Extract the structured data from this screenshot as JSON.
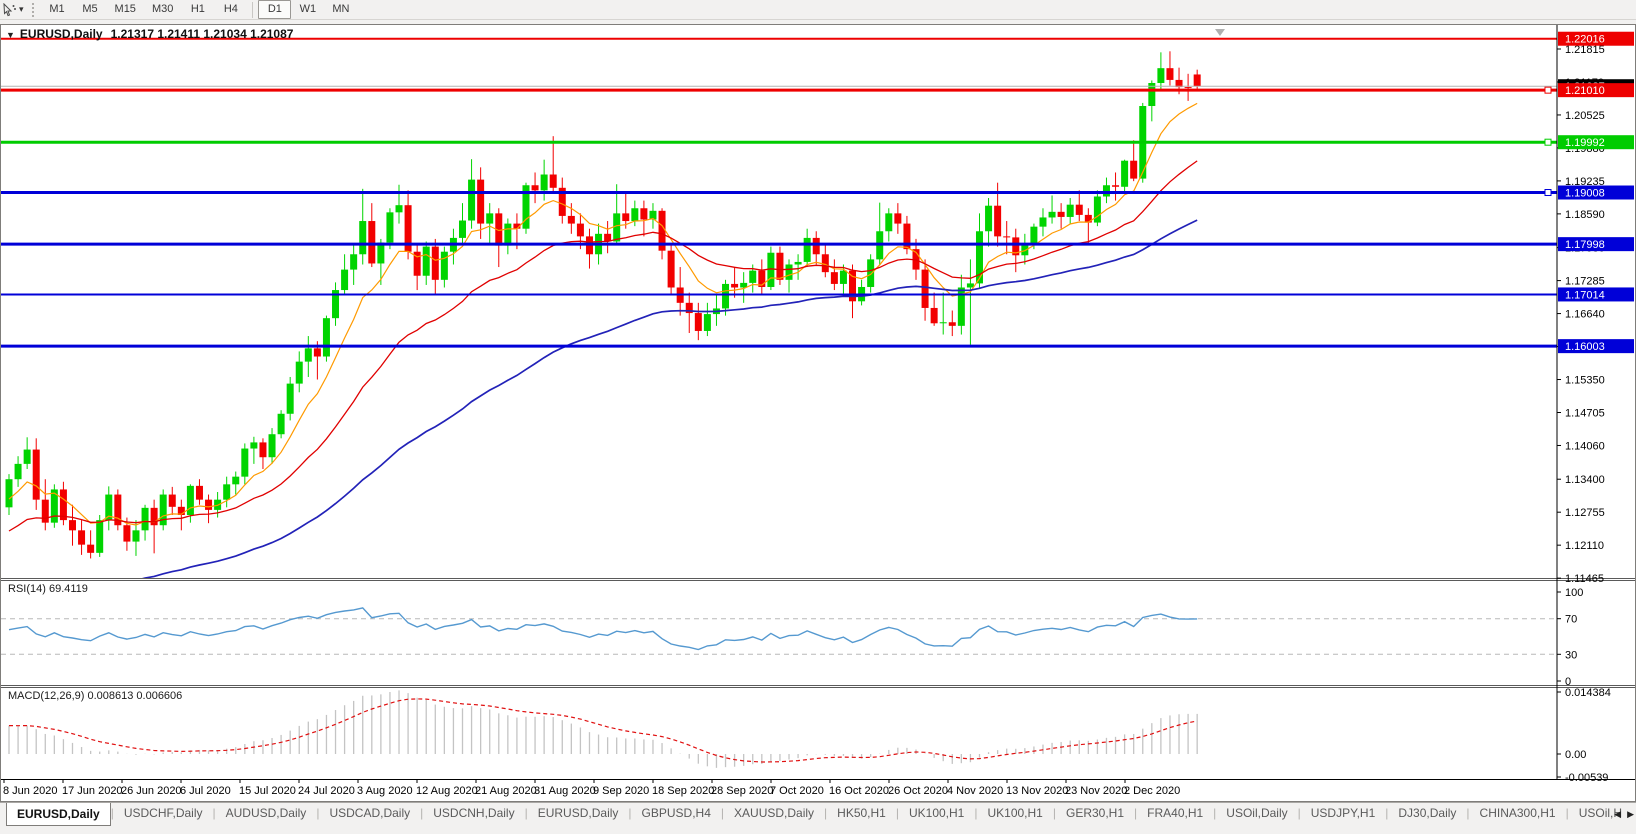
{
  "toolbar": {
    "tool_icon": "cursor-tool-icon",
    "dropdown_icon": "caret-down-icon",
    "timeframes": [
      "M1",
      "M5",
      "M15",
      "M30",
      "H1",
      "H4",
      "D1",
      "W1",
      "MN"
    ],
    "active_timeframe": "D1",
    "separator_before": "D1"
  },
  "header": {
    "collapse_icon": "triangle-down",
    "symbol": "EURUSD,Daily",
    "ohlc_text": "1.21317 1.21411 1.21034 1.21087"
  },
  "chart_data": {
    "type": "candlestick",
    "title": "EURUSD,Daily",
    "ohlc_display": {
      "open": "1.21317",
      "high": "1.21411",
      "low": "1.21034",
      "close": "1.21087"
    },
    "bull_color": "#00d400",
    "bear_color": "#f20000",
    "y_axis_ticks": [
      "1.21815",
      "1.21170",
      "1.20525",
      "1.19880",
      "1.19235",
      "1.18590",
      "1.17930",
      "1.17285",
      "1.16640",
      "1.15995",
      "1.15350",
      "1.14705",
      "1.14060",
      "1.13400",
      "1.12755",
      "1.12110",
      "1.11465"
    ],
    "x_labels": [
      "8 Jun 2020",
      "17 Jun 2020",
      "26 Jun 2020",
      "6 Jul 2020",
      "15 Jul 2020",
      "24 Jul 2020",
      "3 Aug 2020",
      "12 Aug 2020",
      "21 Aug 2020",
      "31 Aug 2020",
      "9 Sep 2020",
      "18 Sep 2020",
      "28 Sep 2020",
      "7 Oct 2020",
      "16 Oct 2020",
      "26 Oct 2020",
      "4 Nov 2020",
      "13 Nov 2020",
      "23 Nov 2020",
      "2 Dec 2020"
    ],
    "horizontal_lines": [
      {
        "price": 1.22016,
        "label": "1.22016",
        "color": "#ee0000",
        "thickness": 2,
        "handle": false
      },
      {
        "price": 1.2101,
        "label": "1.21010",
        "color": "#ee0000",
        "thickness": 3,
        "handle": true
      },
      {
        "price": 1.19992,
        "label": "1.19992",
        "color": "#00cc00",
        "thickness": 3,
        "handle": true
      },
      {
        "price": 1.19008,
        "label": "1.19008",
        "color": "#0000d8",
        "thickness": 3,
        "handle": true
      },
      {
        "price": 1.17998,
        "label": "1.17998",
        "color": "#0000d8",
        "thickness": 3,
        "handle": false
      },
      {
        "price": 1.17014,
        "label": "1.17014",
        "color": "#0000d8",
        "thickness": 2,
        "handle": false
      },
      {
        "price": 1.16003,
        "label": "1.16003",
        "color": "#0000d8",
        "thickness": 3,
        "handle": false
      }
    ],
    "bid_line": {
      "price": 1.21087,
      "label": "1.21087",
      "line_color": "#b4b4b4",
      "label_bg": "#000000"
    },
    "moving_averages": [
      {
        "name": "fast-ma",
        "color": "#ff9a00",
        "width": 1.2
      },
      {
        "name": "medium-ma",
        "color": "#e00000",
        "width": 1.3
      },
      {
        "name": "slow-ma",
        "color": "#2222b8",
        "width": 1.7
      }
    ],
    "candles": [
      [
        1.1285,
        1.135,
        1.127,
        1.134
      ],
      [
        1.134,
        1.1385,
        1.1325,
        1.137
      ],
      [
        1.137,
        1.1422,
        1.136,
        1.1398
      ],
      [
        1.1398,
        1.142,
        1.128,
        1.13
      ],
      [
        1.13,
        1.134,
        1.124,
        1.1255
      ],
      [
        1.1255,
        1.133,
        1.1245,
        1.132
      ],
      [
        1.132,
        1.1335,
        1.125,
        1.126
      ],
      [
        1.126,
        1.129,
        1.121,
        1.124
      ],
      [
        1.124,
        1.126,
        1.1192,
        1.1212
      ],
      [
        1.1212,
        1.124,
        1.1185,
        1.1196
      ],
      [
        1.1196,
        1.127,
        1.1188,
        1.126
      ],
      [
        1.126,
        1.1326,
        1.124,
        1.131
      ],
      [
        1.131,
        1.132,
        1.124,
        1.125
      ],
      [
        1.125,
        1.1265,
        1.12,
        1.1218
      ],
      [
        1.1218,
        1.126,
        1.119,
        1.124
      ],
      [
        1.124,
        1.129,
        1.122,
        1.1284
      ],
      [
        1.1284,
        1.13,
        1.1195,
        1.125
      ],
      [
        1.125,
        1.132,
        1.124,
        1.131
      ],
      [
        1.131,
        1.1325,
        1.127,
        1.1286
      ],
      [
        1.1286,
        1.13,
        1.124,
        1.127
      ],
      [
        1.127,
        1.133,
        1.1255,
        1.1327
      ],
      [
        1.1327,
        1.134,
        1.129,
        1.13
      ],
      [
        1.13,
        1.131,
        1.1254,
        1.128
      ],
      [
        1.128,
        1.1315,
        1.1265,
        1.13
      ],
      [
        1.13,
        1.1345,
        1.1285,
        1.133
      ],
      [
        1.133,
        1.1355,
        1.131,
        1.1345
      ],
      [
        1.1345,
        1.141,
        1.133,
        1.14
      ],
      [
        1.14,
        1.1423,
        1.137,
        1.1412
      ],
      [
        1.1412,
        1.142,
        1.136,
        1.1383
      ],
      [
        1.1383,
        1.144,
        1.137,
        1.1428
      ],
      [
        1.1428,
        1.1475,
        1.142,
        1.1468
      ],
      [
        1.1468,
        1.154,
        1.1455,
        1.1527
      ],
      [
        1.1527,
        1.159,
        1.151,
        1.157
      ],
      [
        1.157,
        1.162,
        1.154,
        1.1596
      ],
      [
        1.1596,
        1.161,
        1.1535,
        1.158
      ],
      [
        1.158,
        1.166,
        1.157,
        1.1655
      ],
      [
        1.1655,
        1.1725,
        1.164,
        1.171
      ],
      [
        1.171,
        1.178,
        1.17,
        1.175
      ],
      [
        1.175,
        1.18,
        1.172,
        1.178
      ],
      [
        1.178,
        1.1908,
        1.176,
        1.1845
      ],
      [
        1.1845,
        1.188,
        1.1755,
        1.1762
      ],
      [
        1.1762,
        1.181,
        1.172,
        1.1803
      ],
      [
        1.1803,
        1.187,
        1.179,
        1.1862
      ],
      [
        1.1862,
        1.1916,
        1.184,
        1.1876
      ],
      [
        1.1876,
        1.1905,
        1.177,
        1.1785
      ],
      [
        1.1785,
        1.18,
        1.171,
        1.1738
      ],
      [
        1.1738,
        1.1805,
        1.172,
        1.1795
      ],
      [
        1.1795,
        1.181,
        1.17,
        1.173
      ],
      [
        1.173,
        1.1795,
        1.1715,
        1.1785
      ],
      [
        1.1785,
        1.183,
        1.176,
        1.1812
      ],
      [
        1.1812,
        1.188,
        1.18,
        1.1846
      ],
      [
        1.1846,
        1.1966,
        1.183,
        1.1926
      ],
      [
        1.1926,
        1.195,
        1.181,
        1.184
      ],
      [
        1.184,
        1.188,
        1.18,
        1.186
      ],
      [
        1.186,
        1.187,
        1.1755,
        1.1797
      ],
      [
        1.1797,
        1.185,
        1.178,
        1.184
      ],
      [
        1.184,
        1.186,
        1.179,
        1.183
      ],
      [
        1.183,
        1.192,
        1.182,
        1.1915
      ],
      [
        1.1915,
        1.194,
        1.188,
        1.1905
      ],
      [
        1.1905,
        1.1965,
        1.1885,
        1.1936
      ],
      [
        1.1936,
        1.2011,
        1.19,
        1.191
      ],
      [
        1.191,
        1.193,
        1.184,
        1.1855
      ],
      [
        1.1855,
        1.188,
        1.182,
        1.184
      ],
      [
        1.184,
        1.186,
        1.179,
        1.1815
      ],
      [
        1.1815,
        1.183,
        1.1752,
        1.178
      ],
      [
        1.178,
        1.184,
        1.176,
        1.182
      ],
      [
        1.182,
        1.1845,
        1.1782,
        1.1805
      ],
      [
        1.1805,
        1.1917,
        1.18,
        1.186
      ],
      [
        1.186,
        1.19,
        1.183,
        1.1845
      ],
      [
        1.1845,
        1.1885,
        1.1835,
        1.187
      ],
      [
        1.187,
        1.1885,
        1.1815,
        1.1848
      ],
      [
        1.1848,
        1.188,
        1.183,
        1.1865
      ],
      [
        1.1865,
        1.187,
        1.177,
        1.1787
      ],
      [
        1.1787,
        1.18,
        1.17,
        1.1715
      ],
      [
        1.1715,
        1.1755,
        1.166,
        1.1685
      ],
      [
        1.1685,
        1.1705,
        1.1626,
        1.1665
      ],
      [
        1.1665,
        1.1685,
        1.1612,
        1.163
      ],
      [
        1.163,
        1.1685,
        1.162,
        1.1663
      ],
      [
        1.1663,
        1.17,
        1.164,
        1.1674
      ],
      [
        1.1674,
        1.173,
        1.166,
        1.1722
      ],
      [
        1.1722,
        1.1755,
        1.1695,
        1.1715
      ],
      [
        1.1715,
        1.1745,
        1.1685,
        1.1724
      ],
      [
        1.1724,
        1.176,
        1.1705,
        1.1748
      ],
      [
        1.1748,
        1.177,
        1.17,
        1.1716
      ],
      [
        1.1716,
        1.1795,
        1.171,
        1.1783
      ],
      [
        1.1783,
        1.1795,
        1.172,
        1.173
      ],
      [
        1.173,
        1.177,
        1.1705,
        1.176
      ],
      [
        1.176,
        1.178,
        1.173,
        1.1765
      ],
      [
        1.1765,
        1.183,
        1.1755,
        1.1812
      ],
      [
        1.1812,
        1.1825,
        1.176,
        1.178
      ],
      [
        1.178,
        1.18,
        1.1735,
        1.1745
      ],
      [
        1.1745,
        1.177,
        1.171,
        1.1722
      ],
      [
        1.1722,
        1.176,
        1.17,
        1.1748
      ],
      [
        1.1748,
        1.176,
        1.1655,
        1.1688
      ],
      [
        1.1688,
        1.173,
        1.168,
        1.1716
      ],
      [
        1.1716,
        1.178,
        1.1705,
        1.177
      ],
      [
        1.177,
        1.1881,
        1.176,
        1.1825
      ],
      [
        1.1825,
        1.187,
        1.1805,
        1.186
      ],
      [
        1.186,
        1.188,
        1.182,
        1.184
      ],
      [
        1.184,
        1.1855,
        1.178,
        1.179
      ],
      [
        1.179,
        1.181,
        1.173,
        1.175
      ],
      [
        1.175,
        1.177,
        1.165,
        1.1675
      ],
      [
        1.1675,
        1.1705,
        1.164,
        1.1645
      ],
      [
        1.1645,
        1.1705,
        1.1623,
        1.1647
      ],
      [
        1.1647,
        1.167,
        1.162,
        1.164
      ],
      [
        1.164,
        1.174,
        1.1623,
        1.1715
      ],
      [
        1.1715,
        1.177,
        1.1603,
        1.1723
      ],
      [
        1.1723,
        1.186,
        1.1715,
        1.1825
      ],
      [
        1.1825,
        1.189,
        1.1795,
        1.1875
      ],
      [
        1.1875,
        1.192,
        1.1795,
        1.1815
      ],
      [
        1.1815,
        1.1845,
        1.178,
        1.1813
      ],
      [
        1.1813,
        1.183,
        1.1745,
        1.1778
      ],
      [
        1.1778,
        1.182,
        1.176,
        1.1802
      ],
      [
        1.1802,
        1.184,
        1.179,
        1.1834
      ],
      [
        1.1834,
        1.187,
        1.1815,
        1.1852
      ],
      [
        1.1852,
        1.1895,
        1.184,
        1.1863
      ],
      [
        1.1863,
        1.188,
        1.183,
        1.1853
      ],
      [
        1.1853,
        1.189,
        1.184,
        1.1877
      ],
      [
        1.1877,
        1.1905,
        1.1845,
        1.1857
      ],
      [
        1.1857,
        1.187,
        1.18,
        1.1842
      ],
      [
        1.1842,
        1.1905,
        1.1835,
        1.1893
      ],
      [
        1.1893,
        1.193,
        1.188,
        1.1915
      ],
      [
        1.1915,
        1.194,
        1.1885,
        1.1912
      ],
      [
        1.1912,
        1.1965,
        1.19,
        1.1963
      ],
      [
        1.1963,
        1.2003,
        1.1923,
        1.1928
      ],
      [
        1.1928,
        1.2076,
        1.192,
        1.207
      ],
      [
        1.207,
        1.212,
        1.204,
        1.2115
      ],
      [
        1.2115,
        1.2175,
        1.21,
        1.2144
      ],
      [
        1.2144,
        1.2177,
        1.211,
        1.2121
      ],
      [
        1.2121,
        1.2145,
        1.2093,
        1.2107
      ],
      [
        1.2107,
        1.2133,
        1.208,
        1.2105
      ],
      [
        1.21317,
        1.21411,
        1.21034,
        1.21087
      ]
    ],
    "indicators": {
      "rsi": {
        "label": "RSI(14) 69.4119",
        "period": 14,
        "current_value": "69.4119",
        "scale_ticks": [
          "100",
          "70",
          "30",
          "0"
        ],
        "dashed_levels": [
          70,
          30
        ],
        "line_color": "#5599d0",
        "level_line_color": "#b8b8b8"
      },
      "macd": {
        "label": "MACD(12,26,9) 0.008613 0.006606",
        "macd_value": "0.008613",
        "signal_value": "0.006606",
        "scale_ticks": [
          "0.014384",
          "0.00",
          "-0.00539"
        ],
        "scale_tick_values": [
          0.014384,
          0.0,
          -0.00539
        ],
        "histogram_color": "#c4c4c4",
        "signal_color": "#e01010"
      }
    }
  },
  "tabbar": {
    "tabs": [
      "EURUSD,Daily",
      "USDCHF,Daily",
      "AUDUSD,Daily",
      "USDCAD,Daily",
      "USDCNH,Daily",
      "EURUSD,Daily",
      "GBPUSD,H4",
      "XAUUSD,Daily",
      "HK50,H1",
      "UK100,H1",
      "UK100,H1",
      "GER30,H1",
      "FRA40,H1",
      "USOil,Daily",
      "USDJPY,H1",
      "DJ30,Daily",
      "CHINA300,H1",
      "USOil,H"
    ],
    "active_index": 0,
    "scroll_left": "◀",
    "scroll_right": "▶"
  }
}
